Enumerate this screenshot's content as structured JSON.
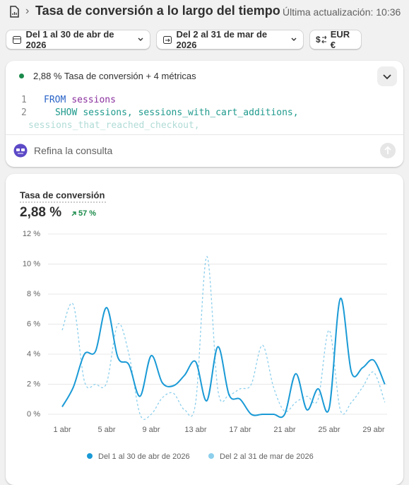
{
  "header": {
    "title": "Tasa de conversión a lo largo del tiempo",
    "updated": "Última actualización: 10:36"
  },
  "filters": {
    "period": "Del 1 al 30 de abr de 2026",
    "comparison": "Del 2 al 31 de mar de 2026",
    "currency": "EUR €"
  },
  "query": {
    "summary": "2,88 % Tasa de conversión + 4 métricas",
    "lines": [
      {
        "number": 1,
        "keyword": "FROM",
        "rest": "sessions"
      },
      {
        "number": 2,
        "keyword": "SHOW",
        "rest": "sessions, sessions_with_cart_additions,"
      },
      {
        "rest": "sessions_that_reached_checkout,"
      }
    ],
    "prompt": "Refina la consulta"
  },
  "chart_data": {
    "type": "line",
    "title": "Tasa de conversión",
    "total": "2,88 %",
    "change": "57 %",
    "categories": [
      "1 abr",
      null,
      null,
      null,
      "5 abr",
      null,
      null,
      null,
      "9 abr",
      null,
      null,
      null,
      "13 abr",
      null,
      null,
      null,
      "17 abr",
      null,
      null,
      null,
      "21 abr",
      null,
      null,
      null,
      "25 abr",
      null,
      null,
      null,
      "29 abr",
      null
    ],
    "series": [
      {
        "name": "Del 1 al 30 de abr de 2026",
        "color": "#1a9ad6",
        "dashed": false,
        "values": [
          0.5,
          1.8,
          4.0,
          4.2,
          7.1,
          3.8,
          3.3,
          1.2,
          3.9,
          2.1,
          1.9,
          2.6,
          3.5,
          0.9,
          4.5,
          1.3,
          1.0,
          0,
          0,
          0,
          0,
          2.7,
          0.3,
          1.7,
          0.4,
          7.7,
          2.8,
          3.1,
          3.6,
          2.0
        ]
      },
      {
        "name": "Del 2 al 31 de mar de 2026",
        "color": "#8ccfec",
        "dashed": true,
        "values": [
          5.6,
          7.3,
          2.2,
          2.0,
          2.1,
          6.0,
          4.0,
          0,
          0,
          1.1,
          1.4,
          0.3,
          0.8,
          10.5,
          1.6,
          1.3,
          1.7,
          2.0,
          4.6,
          1.8,
          0.2,
          0.8,
          1.2,
          1.0,
          5.6,
          0.3,
          0.8,
          1.8,
          2.8,
          0.8
        ]
      }
    ],
    "ylim": [
      0,
      12
    ],
    "yticks": [
      {
        "value": 0,
        "label": "0 %"
      },
      {
        "value": 2,
        "label": "2 %"
      },
      {
        "value": 4,
        "label": "4 %"
      },
      {
        "value": 6,
        "label": "6 %"
      },
      {
        "value": 8,
        "label": "8 %"
      },
      {
        "value": 10,
        "label": "10 %"
      },
      {
        "value": 12,
        "label": "12 %"
      }
    ],
    "grid": true
  }
}
